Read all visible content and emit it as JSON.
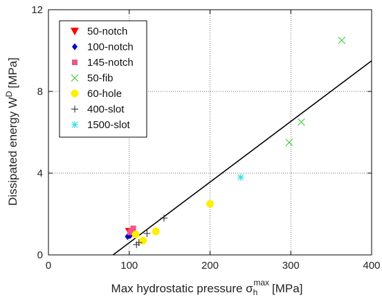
{
  "chart_data": {
    "type": "scatter",
    "title": "",
    "xlabel_main": "Max hydrostatic pressure σ",
    "xlabel_sub": "h",
    "xlabel_sup": "max",
    "xlabel_unit": "[MPa]",
    "ylabel_main": "Dissipated energy W",
    "ylabel_sup": "D",
    "ylabel_unit": "[MPa]",
    "xlim": [
      0,
      400
    ],
    "ylim": [
      0,
      12
    ],
    "xticks": [
      0,
      100,
      200,
      300,
      400
    ],
    "yticks": [
      0,
      4,
      8,
      12
    ],
    "grid": true,
    "legend_position": "top-left",
    "fit_line": {
      "x": [
        80,
        400
      ],
      "y": [
        0,
        9.5
      ]
    },
    "series": [
      {
        "name": "50-notch",
        "marker": "triangle-down",
        "color": "#ff0000",
        "points": [
          [
            100,
            1.15
          ],
          [
            103,
            1.05
          ]
        ]
      },
      {
        "name": "100-notch",
        "marker": "diamond",
        "color": "#0000cc",
        "points": [
          [
            98,
            0.9
          ],
          [
            101,
            0.95
          ]
        ]
      },
      {
        "name": "145-notch",
        "marker": "square",
        "color": "#ee5588",
        "points": [
          [
            103,
            1.2
          ],
          [
            105,
            1.3
          ],
          [
            101,
            1.1
          ]
        ]
      },
      {
        "name": "50-fib",
        "marker": "x",
        "color": "#44cc44",
        "points": [
          [
            363,
            10.5
          ],
          [
            313,
            6.5
          ],
          [
            298,
            5.5
          ]
        ]
      },
      {
        "name": "60-hole",
        "marker": "circle",
        "color": "#ffee00",
        "points": [
          [
            200,
            2.5
          ],
          [
            133,
            1.15
          ],
          [
            117,
            0.7
          ],
          [
            108,
            1.0
          ]
        ]
      },
      {
        "name": "400-slot",
        "marker": "plus",
        "color": "#333333",
        "points": [
          [
            143,
            1.8
          ],
          [
            122,
            1.05
          ],
          [
            112,
            0.6
          ],
          [
            109,
            0.5
          ]
        ]
      },
      {
        "name": "1500-slot",
        "marker": "asterisk",
        "color": "#33dddd",
        "points": [
          [
            238,
            3.8
          ]
        ]
      }
    ]
  }
}
